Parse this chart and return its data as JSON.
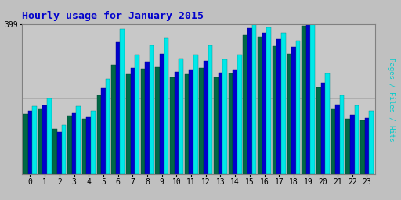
{
  "title": "Hourly usage for January 2015",
  "hours": [
    0,
    1,
    2,
    3,
    4,
    5,
    6,
    7,
    8,
    9,
    10,
    11,
    12,
    13,
    14,
    15,
    16,
    17,
    18,
    19,
    20,
    21,
    22,
    23
  ],
  "pages": [
    160,
    175,
    120,
    155,
    148,
    210,
    290,
    265,
    280,
    285,
    258,
    265,
    282,
    258,
    268,
    370,
    365,
    340,
    320,
    395,
    230,
    175,
    148,
    142
  ],
  "files": [
    168,
    182,
    112,
    162,
    152,
    228,
    350,
    282,
    298,
    320,
    272,
    278,
    300,
    270,
    278,
    388,
    375,
    358,
    338,
    398,
    242,
    185,
    158,
    150
  ],
  "hits": [
    180,
    200,
    130,
    180,
    168,
    252,
    385,
    318,
    342,
    360,
    308,
    318,
    342,
    305,
    318,
    399,
    390,
    375,
    355,
    399,
    268,
    210,
    182,
    168
  ],
  "color_pages": "#006845",
  "color_files": "#0000cc",
  "color_hits": "#00e8e8",
  "bg_color": "#c0c0c0",
  "plot_bg": "#c8c8c8",
  "ytick_label": "399",
  "ymax": 399,
  "title_color": "#0000cc",
  "ylabel_color": "#00cccc",
  "grid_color": "#aaaaaa"
}
